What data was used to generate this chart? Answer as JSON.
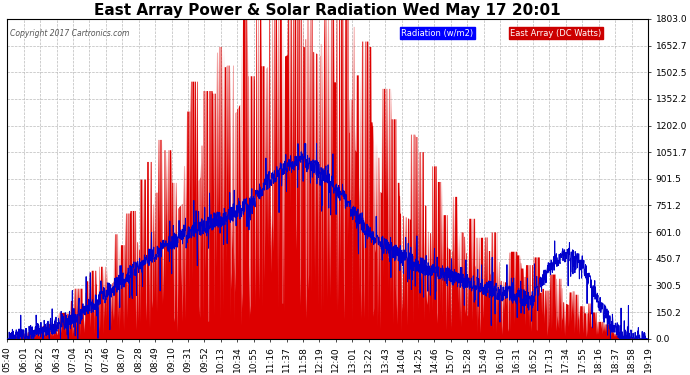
{
  "title": "East Array Power & Solar Radiation Wed May 17 20:01",
  "copyright": "Copyright 2017 Cartronics.com",
  "legend": [
    {
      "label": "Radiation (w/m2)",
      "bg": "#0000ff",
      "fg": "#ffffff"
    },
    {
      "label": "East Array (DC Watts)",
      "bg": "#cc0000",
      "fg": "#ffffff"
    }
  ],
  "ylim": [
    0,
    1803.0
  ],
  "yticks": [
    0.0,
    150.2,
    300.5,
    450.7,
    601.0,
    751.2,
    901.5,
    1051.7,
    1202.0,
    1352.2,
    1502.5,
    1652.7,
    1803.0
  ],
  "ytick_labels": [
    "0.0",
    "150.2",
    "300.5",
    "450.7",
    "601.0",
    "751.2",
    "901.5",
    "1051.7",
    "1202.0",
    "1352.2",
    "1502.5",
    "1652.7",
    "1803.0"
  ],
  "xtick_labels": [
    "05:40",
    "06:01",
    "06:22",
    "06:43",
    "07:04",
    "07:25",
    "07:46",
    "08:07",
    "08:28",
    "08:49",
    "09:10",
    "09:31",
    "09:52",
    "10:13",
    "10:34",
    "10:55",
    "11:16",
    "11:37",
    "11:58",
    "12:19",
    "12:40",
    "13:01",
    "13:22",
    "13:43",
    "14:04",
    "14:25",
    "14:46",
    "15:07",
    "15:28",
    "15:49",
    "16:10",
    "16:31",
    "16:52",
    "17:13",
    "17:34",
    "17:55",
    "18:16",
    "18:37",
    "18:58",
    "19:19"
  ],
  "radiation_color": "#0000cc",
  "power_fill_color": "#dd0000",
  "background_color": "#ffffff",
  "grid_color": "#bbbbbb",
  "title_fontsize": 11,
  "tick_fontsize": 6.5,
  "n_points": 40,
  "peak_idx": 18,
  "power_max": 1750,
  "radiation_max": 950,
  "figwidth": 6.9,
  "figheight": 3.75
}
